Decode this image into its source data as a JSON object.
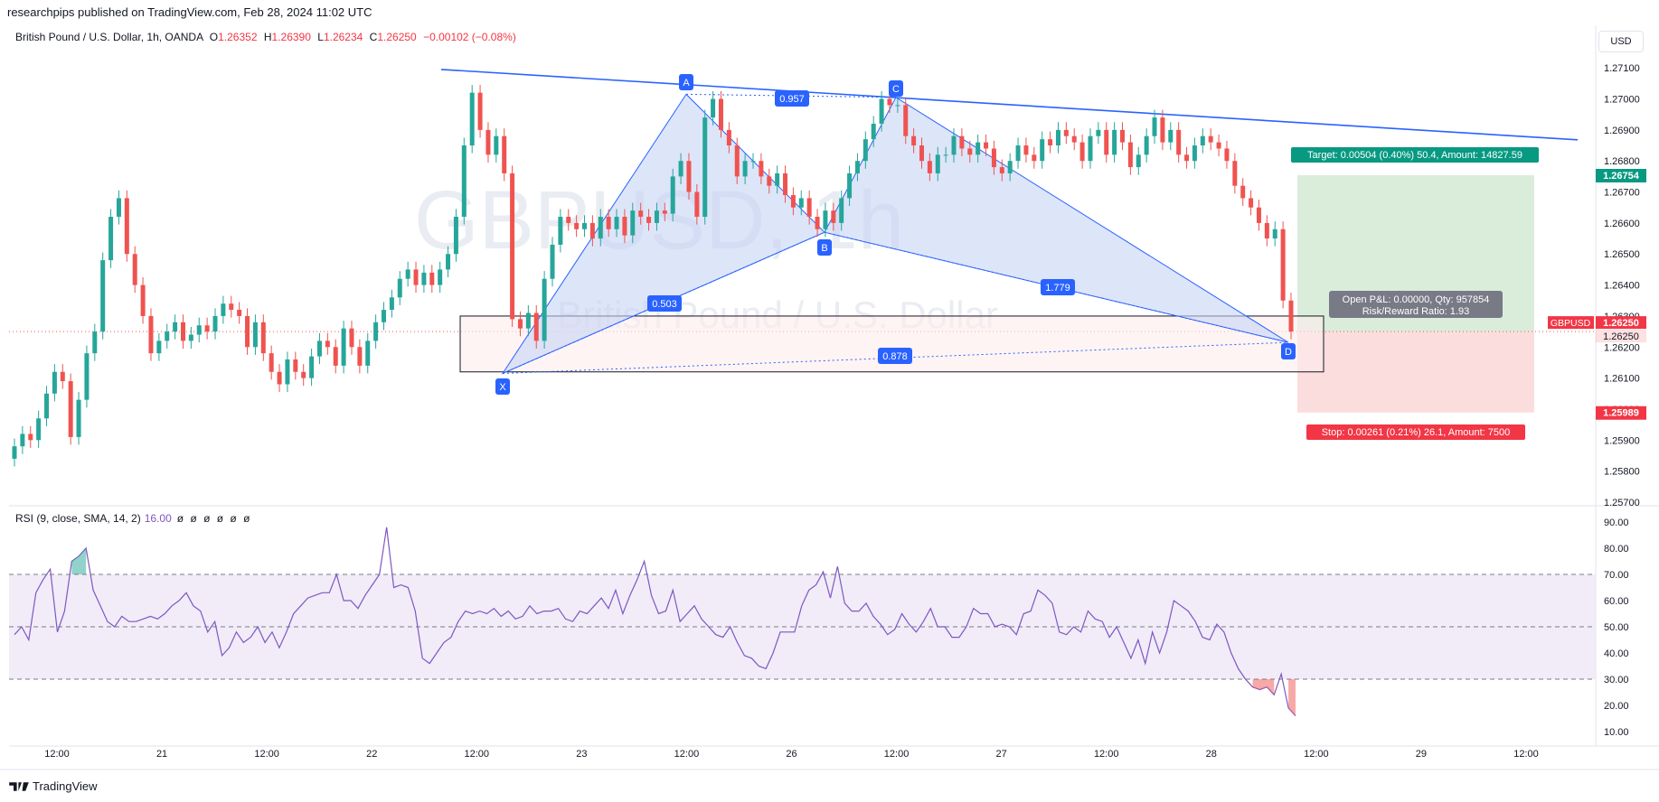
{
  "header": {
    "published": "researchpips published on TradingView.com, Feb 28, 2024 11:02 UTC",
    "symbol_desc": "British Pound / U.S. Dollar, 1h, OANDA",
    "o_label": "O",
    "o_value": "1.26352",
    "h_label": "H",
    "h_value": "1.26390",
    "l_label": "L",
    "l_value": "1.26234",
    "c_label": "C",
    "c_value": "1.26250",
    "change": "−0.00102 (−0.08%)",
    "currency": "USD"
  },
  "watermark": {
    "symbol": "GBPUSD, 1h",
    "desc": "British Pound / U.S. Dollar"
  },
  "footer": {
    "brand": "TradingView"
  },
  "colors": {
    "up": "#26a69a",
    "down": "#ef5350",
    "pattern_line": "#2962ff",
    "pattern_fill": "#c7d3f5",
    "target_fill": "#d6ebd7",
    "stop_fill": "#fcd9d9",
    "rsi": "#7e57c2",
    "rsi_band": "#ede7f6"
  },
  "chart_data": [
    {
      "type": "candlestick",
      "title": "British Pound / U.S. Dollar, 1h, OANDA",
      "ylim": [
        1.257,
        1.2715
      ],
      "y_ticks": [
        "1.27100",
        "1.27000",
        "1.26900",
        "1.26800",
        "1.26700",
        "1.26600",
        "1.26500",
        "1.26400",
        "1.26300",
        "1.26200",
        "1.26100",
        "1.26000",
        "1.25900",
        "1.25800",
        "1.25700"
      ],
      "x_ticks": [
        "12:00",
        "21",
        "12:00",
        "22",
        "12:00",
        "23",
        "12:00",
        "26",
        "12:00",
        "27",
        "12:00",
        "28",
        "12:00",
        "29",
        "12:00"
      ],
      "price_labels": [
        {
          "text": "1.26754",
          "kind": "target"
        },
        {
          "text": "1.26250",
          "kind": "current"
        },
        {
          "text": "1.25989",
          "kind": "stop"
        }
      ],
      "symbol_tag": "GBPUSD",
      "close": [
        1.2588,
        1.2592,
        1.259,
        1.2597,
        1.2605,
        1.2612,
        1.2609,
        1.2591,
        1.2603,
        1.2618,
        1.2625,
        1.2648,
        1.2662,
        1.2668,
        1.265,
        1.264,
        1.263,
        1.2618,
        1.2622,
        1.2625,
        1.2628,
        1.2622,
        1.2624,
        1.2627,
        1.2625,
        1.263,
        1.2634,
        1.2632,
        1.263,
        1.262,
        1.2628,
        1.2618,
        1.2612,
        1.2608,
        1.2616,
        1.2612,
        1.261,
        1.2617,
        1.2622,
        1.262,
        1.2614,
        1.2626,
        1.262,
        1.2614,
        1.2622,
        1.2628,
        1.2632,
        1.2636,
        1.2642,
        1.2645,
        1.264,
        1.2644,
        1.264,
        1.2645,
        1.265,
        1.2662,
        1.2685,
        1.2702,
        1.269,
        1.2682,
        1.2688,
        1.2676,
        1.2629,
        1.2626,
        1.2631,
        1.2622,
        1.2642,
        1.2653,
        1.2662,
        1.266,
        1.2658,
        1.266,
        1.2655,
        1.2662,
        1.2658,
        1.2662,
        1.2656,
        1.2664,
        1.2662,
        1.266,
        1.2664,
        1.2663,
        1.2675,
        1.268,
        1.267,
        1.2662,
        1.2694,
        1.27,
        1.269,
        1.2685,
        1.2675,
        1.268,
        1.268,
        1.2675,
        1.2672,
        1.2676,
        1.2669,
        1.2665,
        1.2668,
        1.2662,
        1.2658,
        1.2664,
        1.266,
        1.2668,
        1.2676,
        1.268,
        1.2687,
        1.2692,
        1.27,
        1.2698,
        1.2698,
        1.2688,
        1.2685,
        1.268,
        1.2676,
        1.2682,
        1.2682,
        1.2688,
        1.2684,
        1.2682,
        1.2686,
        1.2684,
        1.2678,
        1.2676,
        1.268,
        1.2685,
        1.2682,
        1.268,
        1.2687,
        1.2685,
        1.269,
        1.2688,
        1.2686,
        1.268,
        1.2688,
        1.269,
        1.2682,
        1.269,
        1.2686,
        1.2678,
        1.2682,
        1.2688,
        1.2694,
        1.2686,
        1.269,
        1.2682,
        1.268,
        1.2685,
        1.2688,
        1.2686,
        1.2684,
        1.268,
        1.2672,
        1.2668,
        1.2665,
        1.266,
        1.2655,
        1.2658,
        1.2635,
        1.2625
      ],
      "rsi": {
        "label": "RSI (9, close, SMA, 14, 2)",
        "value_label": "16.00",
        "ylim": [
          10,
          90
        ],
        "y_ticks": [
          "90.00",
          "80.00",
          "70.00",
          "60.00",
          "50.00",
          "40.00",
          "30.00",
          "20.00",
          "10.00"
        ],
        "bands": [
          30,
          50,
          70
        ],
        "values": [
          47,
          50,
          45,
          63,
          68,
          72,
          48,
          56,
          75,
          77,
          80,
          64,
          58,
          52,
          50,
          54,
          52,
          52,
          53,
          54,
          53,
          55,
          58,
          60,
          63,
          58,
          56,
          48,
          52,
          39,
          42,
          48,
          44,
          46,
          50,
          44,
          48,
          42,
          48,
          55,
          58,
          61,
          62,
          63,
          63,
          70,
          60,
          60,
          57,
          62,
          66,
          70,
          88,
          65,
          66,
          65,
          56,
          38,
          36,
          40,
          44,
          46,
          52,
          56,
          55,
          56,
          55,
          57,
          54,
          56,
          53,
          54,
          58,
          55,
          56,
          56,
          57,
          53,
          52,
          56,
          55,
          58,
          61,
          57,
          64,
          55,
          62,
          68,
          75,
          62,
          55,
          56,
          64,
          52,
          55,
          58,
          53,
          50,
          47,
          46,
          50,
          44,
          39,
          38,
          35,
          34,
          40,
          48,
          48,
          48,
          58,
          64,
          66,
          71,
          61,
          73,
          59,
          56,
          56,
          59,
          54,
          51,
          47,
          49,
          55,
          51,
          48,
          52,
          57,
          50,
          50,
          46,
          46,
          50,
          57,
          55,
          55,
          50,
          51,
          50,
          47,
          55,
          56,
          64,
          62,
          59,
          48,
          47,
          50,
          48,
          56,
          53,
          52,
          46,
          50,
          44,
          38,
          45,
          36,
          48,
          40,
          48,
          60,
          58,
          56,
          52,
          46,
          45,
          51,
          48,
          40,
          34,
          30,
          27,
          26,
          27,
          24,
          32,
          19,
          16
        ]
      },
      "harmonic_pattern": {
        "points": [
          "X",
          "A",
          "B",
          "C",
          "D"
        ],
        "prices": [
          1.26115,
          1.27015,
          1.2657,
          1.27005,
          1.26215
        ],
        "ratios": [
          "0.957",
          "0.503",
          "1.779",
          "0.878"
        ]
      },
      "trendline": {
        "from_price": 1.27095,
        "to_price": 1.26868
      },
      "position": {
        "target_label": "Target: 0.00504 (0.40%) 50.4, Amount: 14827.59",
        "stop_label": "Stop: 0.00261 (0.21%) 26.1, Amount: 7500",
        "info_line1": "Open P&L: 0.00000, Qty: 957854",
        "info_line2": "Risk/Reward Ratio: 1.93",
        "entry": 1.2625,
        "target": 1.26754,
        "stop": 1.25989
      },
      "zone": {
        "top": 1.263,
        "bottom": 1.2612
      }
    }
  ]
}
